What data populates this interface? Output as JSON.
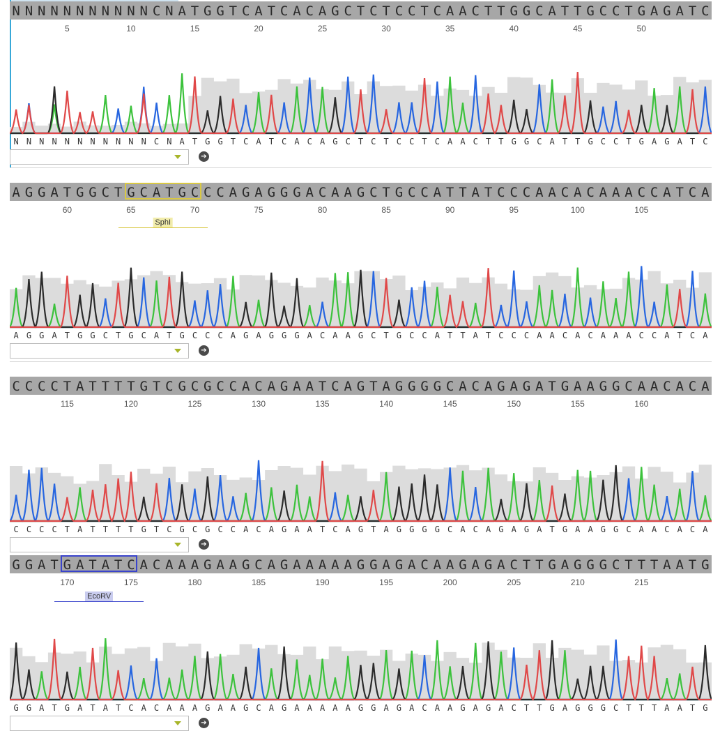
{
  "colors": {
    "A": "#3cc23c",
    "C": "#2766e0",
    "G": "#2b2b2b",
    "T": "#e04848",
    "quality": "#dcdcdc",
    "seqbar": "#a7a7a7",
    "sphI": "#d9c843",
    "ecoRV": "#3a44cc"
  },
  "rows": [
    {
      "seq": "NNNNNNNNNNNCNATGGTCATCACAGCTCTCCTCAACTTGGCATTGCCTGAGATC",
      "tick_offset": 0,
      "ticks": [
        "5",
        "10",
        "15",
        "20",
        "25",
        "30",
        "35",
        "40",
        "45",
        "50"
      ],
      "select_value": "",
      "go_icon": "arrow-right-circle-icon"
    },
    {
      "seq": "AGGATGGCTGCATGCCCAGAGGGACAAGCTGCCATTATCCCAACACAAACCATCA",
      "tick_offset": 55,
      "ticks": [
        "60",
        "65",
        "70",
        "75",
        "80",
        "85",
        "90",
        "95",
        "100",
        "105"
      ],
      "enzyme": {
        "name": "SphI",
        "start": 9,
        "end": 15
      },
      "select_value": "",
      "go_icon": "arrow-right-circle-icon"
    },
    {
      "seq": "CCCCTATTTTGTCGCGCCACAGAATCAGTAGGGGCACAGAGATGAAGGCAACACA",
      "tick_offset": 110,
      "ticks": [
        "115",
        "120",
        "125",
        "130",
        "135",
        "140",
        "145",
        "150",
        "155",
        "160"
      ],
      "select_value": "",
      "go_icon": "arrow-right-circle-icon"
    },
    {
      "seq": "GGATGATATCACAAAGAAGCAGAAAAAGGAGACAAGAGACTTGAGGGCTTTAATG",
      "tick_offset": 165,
      "ticks": [
        "170",
        "175",
        "180",
        "185",
        "190",
        "195",
        "200",
        "205",
        "210",
        "215"
      ],
      "enzyme": {
        "name": "EcoRV",
        "start": 4,
        "end": 10
      },
      "select_value": "",
      "go_icon": "arrow-right-circle-icon"
    }
  ]
}
